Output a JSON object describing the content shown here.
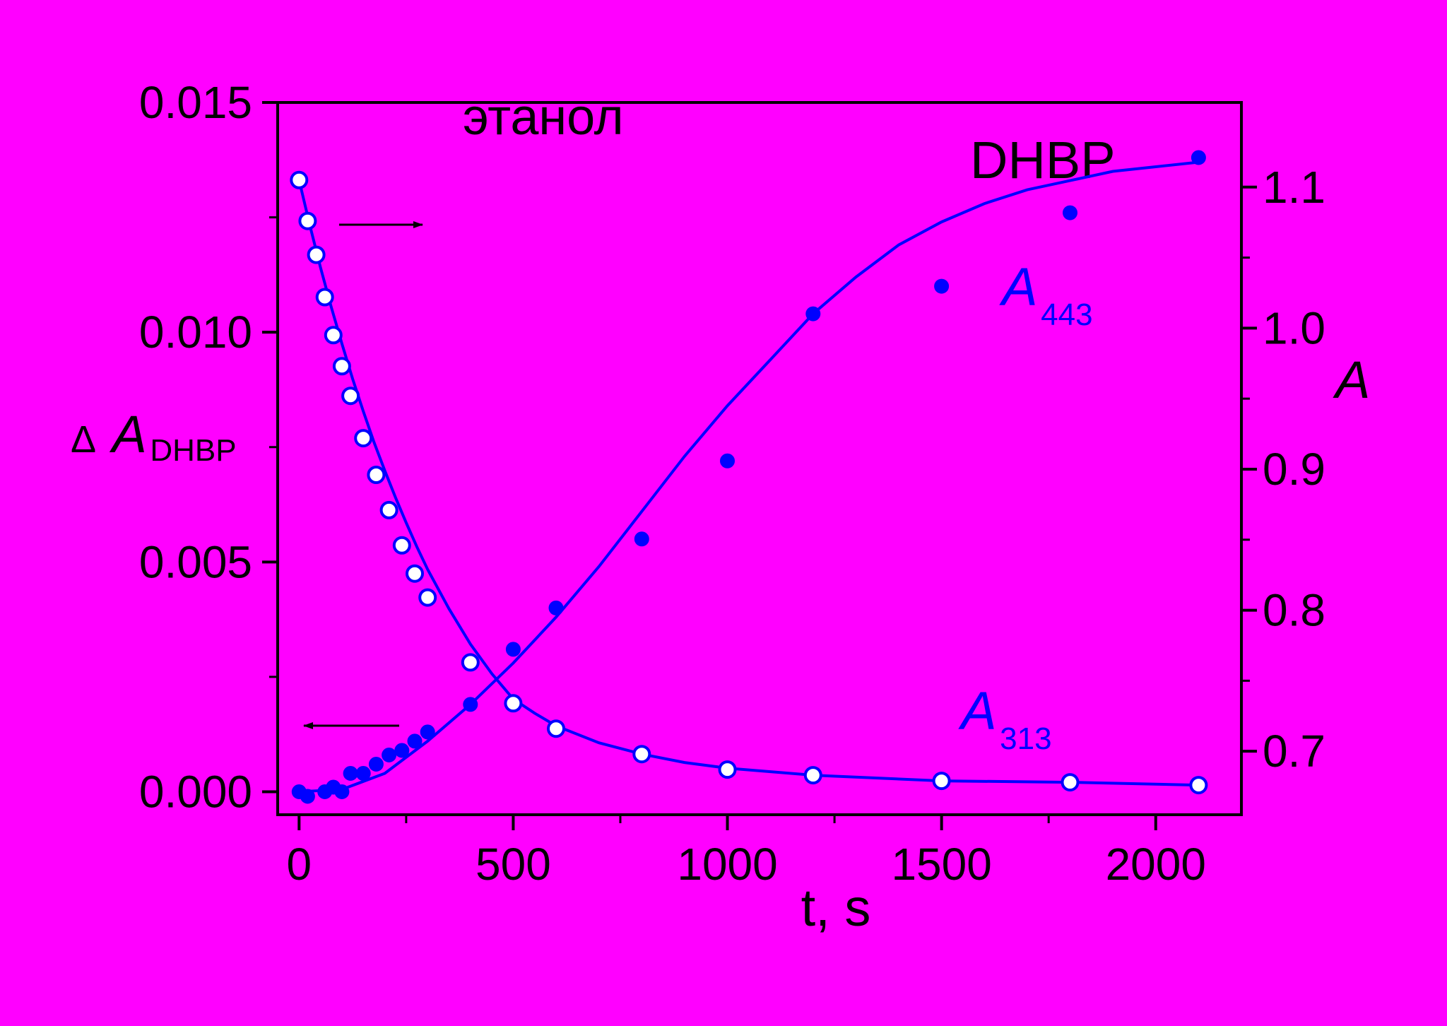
{
  "chart_data": {
    "type": "scatter",
    "annotations": {
      "solvent": "этанол",
      "compound": "DHBP",
      "delta_symbol": "Δ",
      "series_label_443": {
        "main": "A",
        "sub": "443"
      },
      "series_label_313": {
        "main": "A",
        "sub": "313"
      }
    },
    "x_axis": {
      "label": "t, s",
      "range": [
        -50,
        2200
      ],
      "ticks": [
        0,
        500,
        1000,
        1500,
        2000
      ]
    },
    "y_left_axis": {
      "label": {
        "main": "A",
        "sub": "DHBP"
      },
      "range": [
        -0.0005,
        0.015
      ],
      "ticks": [
        "0.000",
        "0.005",
        "0.010",
        "0.015"
      ]
    },
    "y_right_axis": {
      "label": "A",
      "range": [
        0.655,
        1.16
      ],
      "ticks": [
        "0.7",
        "0.8",
        "0.9",
        "1.0",
        "1.1"
      ]
    },
    "colors": {
      "background": "#FF00FF",
      "series": "#0000FF",
      "axes": "#000000",
      "open_marker_fill": "#FFFFFF"
    },
    "series": [
      {
        "label": "A443",
        "axis": "left",
        "marker": "filled-circle",
        "points": [
          [
            0,
            0.0
          ],
          [
            20,
            -0.0001
          ],
          [
            60,
            0.0
          ],
          [
            80,
            0.0001
          ],
          [
            100,
            0.0
          ],
          [
            120,
            0.0004
          ],
          [
            150,
            0.0004
          ],
          [
            180,
            0.0006
          ],
          [
            210,
            0.0008
          ],
          [
            240,
            0.0009
          ],
          [
            270,
            0.0011
          ],
          [
            300,
            0.0013
          ],
          [
            400,
            0.0019
          ],
          [
            500,
            0.0031
          ],
          [
            600,
            0.004
          ],
          [
            800,
            0.0055
          ],
          [
            1000,
            0.0072
          ],
          [
            1200,
            0.0104
          ],
          [
            1500,
            0.011
          ],
          [
            1800,
            0.0126
          ],
          [
            2100,
            0.0138
          ]
        ],
        "fit": [
          [
            0,
            0.0
          ],
          [
            100,
            5e-05
          ],
          [
            200,
            0.0004
          ],
          [
            300,
            0.0011
          ],
          [
            400,
            0.0019
          ],
          [
            500,
            0.0028
          ],
          [
            600,
            0.0038
          ],
          [
            700,
            0.0049
          ],
          [
            800,
            0.0061
          ],
          [
            900,
            0.0073
          ],
          [
            1000,
            0.0084
          ],
          [
            1100,
            0.0094
          ],
          [
            1200,
            0.0104
          ],
          [
            1300,
            0.0112
          ],
          [
            1400,
            0.0119
          ],
          [
            1500,
            0.0124
          ],
          [
            1600,
            0.0128
          ],
          [
            1700,
            0.0131
          ],
          [
            1800,
            0.0133
          ],
          [
            1900,
            0.0135
          ],
          [
            2000,
            0.0136
          ],
          [
            2100,
            0.0137
          ]
        ]
      },
      {
        "label": "A313",
        "axis": "right",
        "marker": "open-circle",
        "points": [
          [
            0,
            1.105
          ],
          [
            20,
            1.076
          ],
          [
            40,
            1.052
          ],
          [
            60,
            1.022
          ],
          [
            80,
            0.995
          ],
          [
            100,
            0.973
          ],
          [
            120,
            0.952
          ],
          [
            150,
            0.922
          ],
          [
            180,
            0.896
          ],
          [
            210,
            0.871
          ],
          [
            240,
            0.846
          ],
          [
            270,
            0.826
          ],
          [
            300,
            0.809
          ],
          [
            400,
            0.763
          ],
          [
            500,
            0.734
          ],
          [
            600,
            0.716
          ],
          [
            800,
            0.698
          ],
          [
            1000,
            0.687
          ],
          [
            1200,
            0.683
          ],
          [
            1500,
            0.679
          ],
          [
            1800,
            0.678
          ],
          [
            2100,
            0.676
          ]
        ],
        "fit": [
          [
            0,
            1.105
          ],
          [
            25,
            1.073
          ],
          [
            50,
            1.043
          ],
          [
            75,
            1.015
          ],
          [
            100,
            0.989
          ],
          [
            125,
            0.964
          ],
          [
            150,
            0.941
          ],
          [
            175,
            0.919
          ],
          [
            200,
            0.899
          ],
          [
            225,
            0.88
          ],
          [
            250,
            0.862
          ],
          [
            275,
            0.845
          ],
          [
            300,
            0.829
          ],
          [
            350,
            0.801
          ],
          [
            400,
            0.776
          ],
          [
            450,
            0.755
          ],
          [
            500,
            0.737
          ],
          [
            550,
            0.727
          ],
          [
            600,
            0.718
          ],
          [
            700,
            0.706
          ],
          [
            800,
            0.698
          ],
          [
            900,
            0.692
          ],
          [
            1000,
            0.688
          ],
          [
            1200,
            0.683
          ],
          [
            1500,
            0.679
          ],
          [
            1800,
            0.678
          ],
          [
            2100,
            0.676
          ]
        ]
      }
    ],
    "arrows": [
      {
        "points_to": "right",
        "series": "A313"
      },
      {
        "points_to": "left",
        "series": "A443"
      }
    ],
    "grid": false,
    "legend": "none"
  }
}
